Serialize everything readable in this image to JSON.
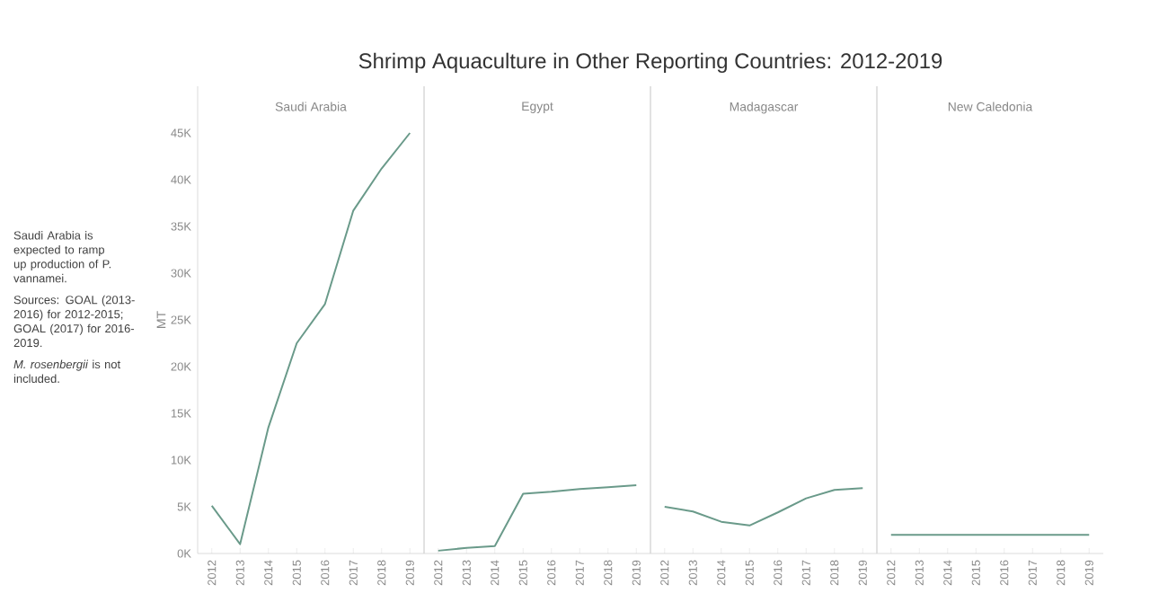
{
  "chart_data": [
    {
      "type": "line",
      "title": "Shrimp Aquaculture in Other Reporting Countries: 2012-2019",
      "subtitle": "Saudi Arabia",
      "ylabel": "MT",
      "annotations": [
        "Saudi Arabia is expected to ramp up production of P. vannamei.",
        "Sources: GOAL (2013-2016) for 2012-2015; GOAL (2017) for 2016-2019.",
        "*M. rosenbergii* is not included."
      ],
      "categories": [
        "2012",
        "2013",
        "2014",
        "2015",
        "2016",
        "2017",
        "2018",
        "2019"
      ],
      "values": [
        5100,
        1000,
        13500,
        22500,
        26700,
        36700,
        41200,
        45000
      ],
      "color": "#6a9a8a",
      "ylim": [
        0,
        50000
      ],
      "yticks": [
        {
          "value": 0,
          "label": "0K"
        },
        {
          "value": 5000,
          "label": "5K"
        },
        {
          "value": 10000,
          "label": "10K"
        },
        {
          "value": 15000,
          "label": "15K"
        },
        {
          "value": 20000,
          "label": "20K"
        },
        {
          "value": 25000,
          "label": "25K"
        },
        {
          "value": 30000,
          "label": "30K"
        },
        {
          "value": 35000,
          "label": "35K"
        },
        {
          "value": 40000,
          "label": "40K"
        },
        {
          "value": 45000,
          "label": "45K"
        }
      ]
    },
    {
      "type": "line",
      "subtitle": "Egypt",
      "categories": [
        "2012",
        "2013",
        "2014",
        "2015",
        "2016",
        "2017",
        "2018",
        "2019"
      ],
      "values": [
        300,
        600,
        800,
        6400,
        6600,
        6900,
        7100,
        7300
      ],
      "color": "#6a9a8a",
      "ylim": [
        0,
        50000
      ],
      "tick_labels": "x"
    },
    {
      "type": "line",
      "subtitle": "Madagascar",
      "categories": [
        "2012",
        "2013",
        "2014",
        "2015",
        "2016",
        "2017",
        "2018",
        "2019"
      ],
      "values": [
        5000,
        4500,
        3400,
        3000,
        4400,
        5900,
        6800,
        7000
      ],
      "color": "#6a9a8a",
      "ylim": [
        0,
        50000
      ],
      "tick_labels": "x"
    },
    {
      "type": "line",
      "subtitle": "New Caledonia",
      "categories": [
        "2012",
        "2013",
        "2014",
        "2015",
        "2016",
        "2017",
        "2018",
        "2019"
      ],
      "values": [
        2000,
        2000,
        2000,
        2000,
        2000,
        2000,
        2000,
        2000
      ],
      "color": "#6a9a8a",
      "ylim": [
        0,
        50000
      ],
      "tick_labels": "x"
    }
  ]
}
